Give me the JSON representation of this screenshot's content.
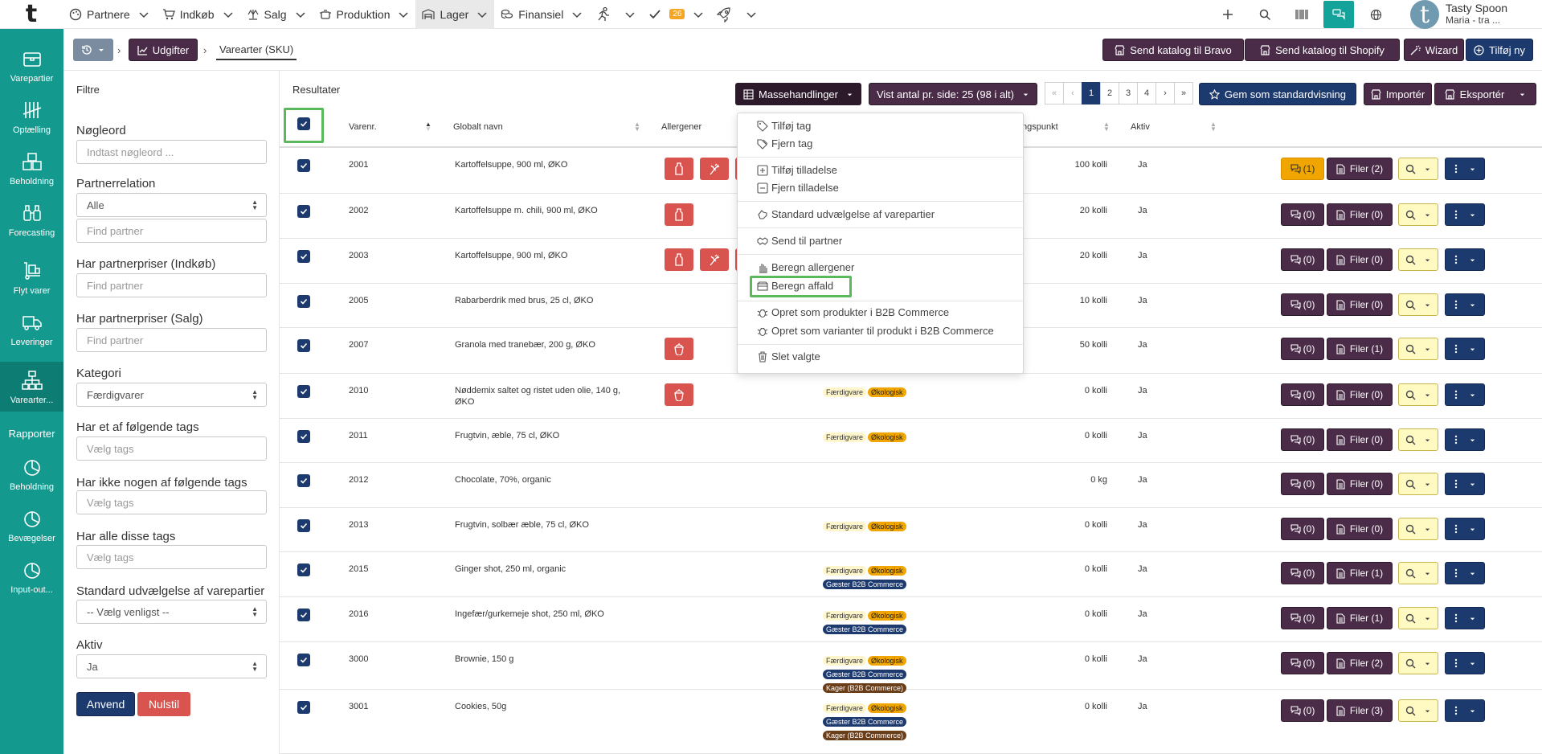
{
  "topnav": {
    "logo": "t",
    "items": [
      {
        "label": "Partnere",
        "icon": "palette-icon"
      },
      {
        "label": "Indkøb",
        "icon": "cart-icon"
      },
      {
        "label": "Salg",
        "icon": "scale-icon"
      },
      {
        "label": "Produktion",
        "icon": "pot-icon"
      },
      {
        "label": "Lager",
        "icon": "warehouse-icon"
      },
      {
        "label": "Finansiel",
        "icon": "coins-icon"
      }
    ],
    "tasks_badge": "26",
    "user_name": "Tasty Spoon",
    "user_company": "Maria - tra ...",
    "avatar_letter": "t"
  },
  "sidebar": {
    "items": [
      {
        "label": "Varepartier",
        "icon": "box-icon"
      },
      {
        "label": "Optælling",
        "icon": "tally-icon"
      },
      {
        "label": "Beholdning",
        "icon": "boxes-icon"
      },
      {
        "label": "Forecasting",
        "icon": "binoculars-icon"
      },
      {
        "label": "Flyt varer",
        "icon": "dolly-icon"
      },
      {
        "label": "Leveringer",
        "icon": "truck-icon"
      },
      {
        "label": "Varearter...",
        "icon": "sitemap-icon"
      }
    ],
    "reports_heading": "Rapporter",
    "report_items": [
      {
        "label": "Beholdning",
        "icon": "pie-icon"
      },
      {
        "label": "Bevægelser",
        "icon": "pie-icon"
      },
      {
        "label": "Input-out...",
        "icon": "pie-icon"
      }
    ]
  },
  "breadcrumb": {
    "parent": "Udgifter",
    "current": "Varearter (SKU)"
  },
  "actions": {
    "send_bravo": "Send katalog til Bravo",
    "send_shopify": "Send katalog til Shopify",
    "wizard": "Wizard",
    "add_new": "Tilføj ny"
  },
  "filters": {
    "title": "Filtre",
    "keyword_label": "Nøgleord",
    "keyword_placeholder": "Indtast nøgleord ...",
    "partner_relation_label": "Partnerrelation",
    "partner_relation_value": "Alle",
    "find_partner": "Find partner",
    "partner_prices_buy_label": "Har partnerpriser (Indkøb)",
    "partner_prices_sell_label": "Har partnerpriser (Salg)",
    "category_label": "Kategori",
    "category_value": "Færdigvarer",
    "any_tags_label": "Har et af følgende tags",
    "no_tags_label": "Har ikke nogen af følgende tags",
    "all_tags_label": "Har alle disse tags",
    "select_tags": "Vælg tags",
    "default_selection_label": "Standard udvælgelse af varepartier",
    "default_selection_value": "-- Vælg venligst --",
    "active_label": "Aktiv",
    "active_value": "Ja",
    "apply": "Anvend",
    "reset": "Nulstil"
  },
  "results": {
    "title": "Resultater",
    "mass_actions": "Massehandlinger",
    "page_size": "Vist antal pr. side: 25 (98 i alt)",
    "pages": [
      "«",
      "‹",
      "1",
      "2",
      "3",
      "4",
      "›",
      "»"
    ],
    "current_page": "1",
    "save_default": "Gem som standardvisning",
    "import": "Importér",
    "export": "Eksportér",
    "columns": {
      "sku": "Varenr.",
      "name": "Globalt navn",
      "allergens": "Allergener",
      "reorder": "ngspunkt",
      "active": "Aktiv"
    }
  },
  "menu": {
    "items": [
      {
        "label": "Tilføj tag",
        "icon": "tag-icon"
      },
      {
        "label": "Fjern tag",
        "icon": "tags-icon"
      },
      {
        "label": "Tilføj tilladelse",
        "icon": "plus-square-icon"
      },
      {
        "label": "Fjern tilladelse",
        "icon": "minus-square-icon"
      },
      {
        "label": "Standard udvælgelse af varepartier",
        "icon": "hand-icon"
      },
      {
        "label": "Send til partner",
        "icon": "handshake-icon"
      },
      {
        "label": "Beregn allergener",
        "icon": "hand-paper-icon"
      },
      {
        "label": "Beregn affald",
        "icon": "dumpster-icon"
      },
      {
        "label": "Opret som produkter i B2B Commerce",
        "icon": "bug-icon"
      },
      {
        "label": "Opret som varianter til produkt i B2B Commerce",
        "icon": "bug-icon"
      },
      {
        "label": "Slet valgte",
        "icon": "trash-icon"
      }
    ]
  },
  "rows": [
    {
      "sku": "2001",
      "name": "Kartoffelsuppe, 900 ml, ØKO",
      "allergens": [
        "bottle",
        "wheat",
        "more"
      ],
      "qty": "100 kolli",
      "active": "Ja",
      "comments": "(1)",
      "files": "Filer (2)",
      "tags": []
    },
    {
      "sku": "2002",
      "name": "Kartoffelsuppe m. chili, 900 ml, ØKO",
      "allergens": [
        "bottle"
      ],
      "qty": "20 kolli",
      "active": "Ja",
      "comments": "(0)",
      "files": "Filer (0)",
      "tags": []
    },
    {
      "sku": "2003",
      "name": "Kartoffelsuppe, 900 ml, ØKO",
      "allergens": [
        "bottle",
        "wheat",
        "more"
      ],
      "qty": "20 kolli",
      "active": "Ja",
      "comments": "(0)",
      "files": "Filer (0)",
      "tags": []
    },
    {
      "sku": "2005",
      "name": "Rabarberdrik med brus, 25 cl, ØKO",
      "allergens": [],
      "qty": "10 kolli",
      "active": "Ja",
      "comments": "(0)",
      "files": "Filer (0)",
      "tags": []
    },
    {
      "sku": "2007",
      "name": "Granola med tranebær, 200 g, ØKO",
      "allergens": [
        "nut"
      ],
      "qty": "50 kolli",
      "active": "Ja",
      "comments": "(0)",
      "files": "Filer (1)",
      "tags": []
    },
    {
      "sku": "2010",
      "name": "Nøddemix saltet og ristet uden olie, 140 g, ØKO",
      "allergens": [
        "nut"
      ],
      "qty": "0 kolli",
      "active": "Ja",
      "comments": "(0)",
      "files": "Filer (0)",
      "tags": [
        "Færdigvare",
        "Økologisk"
      ]
    },
    {
      "sku": "2011",
      "name": "Frugtvin, æble, 75 cl, ØKO",
      "allergens": [],
      "qty": "0 kolli",
      "active": "Ja",
      "comments": "(0)",
      "files": "Filer (0)",
      "tags": [
        "Færdigvare",
        "Økologisk"
      ]
    },
    {
      "sku": "2012",
      "name": "Chocolate, 70%, organic",
      "allergens": [],
      "qty": "0 kg",
      "active": "Ja",
      "comments": "(0)",
      "files": "Filer (0)",
      "tags": []
    },
    {
      "sku": "2013",
      "name": "Frugtvin, solbær æble, 75 cl, ØKO",
      "allergens": [],
      "qty": "0 kolli",
      "active": "Ja",
      "comments": "(0)",
      "files": "Filer (0)",
      "tags": [
        "Færdigvare",
        "Økologisk"
      ]
    },
    {
      "sku": "2015",
      "name": "Ginger shot, 250 ml, organic",
      "allergens": [],
      "qty": "0 kolli",
      "active": "Ja",
      "comments": "(0)",
      "files": "Filer (1)",
      "tags": [
        "Færdigvare",
        "Økologisk",
        "Gæster B2B Commerce"
      ]
    },
    {
      "sku": "2016",
      "name": "Ingefær/gurkemeje shot, 250 ml, ØKO",
      "allergens": [],
      "qty": "0 kolli",
      "active": "Ja",
      "comments": "(0)",
      "files": "Filer (1)",
      "tags": [
        "Færdigvare",
        "Økologisk",
        "Gæster B2B Commerce"
      ]
    },
    {
      "sku": "3000",
      "name": "Brownie, 150 g",
      "allergens": [],
      "qty": "0 kolli",
      "active": "Ja",
      "comments": "(0)",
      "files": "Filer (2)",
      "tags": [
        "Færdigvare",
        "Økologisk",
        "Gæster B2B Commerce",
        "Kager (B2B Commerce)"
      ]
    },
    {
      "sku": "3001",
      "name": "Cookies, 50g",
      "allergens": [],
      "qty": "0 kolli",
      "active": "Ja",
      "comments": "(0)",
      "files": "Filer (3)",
      "tags": [
        "Færdigvare",
        "Økologisk",
        "Gæster B2B Commerce",
        "Kager (B2B Commerce)"
      ]
    }
  ]
}
